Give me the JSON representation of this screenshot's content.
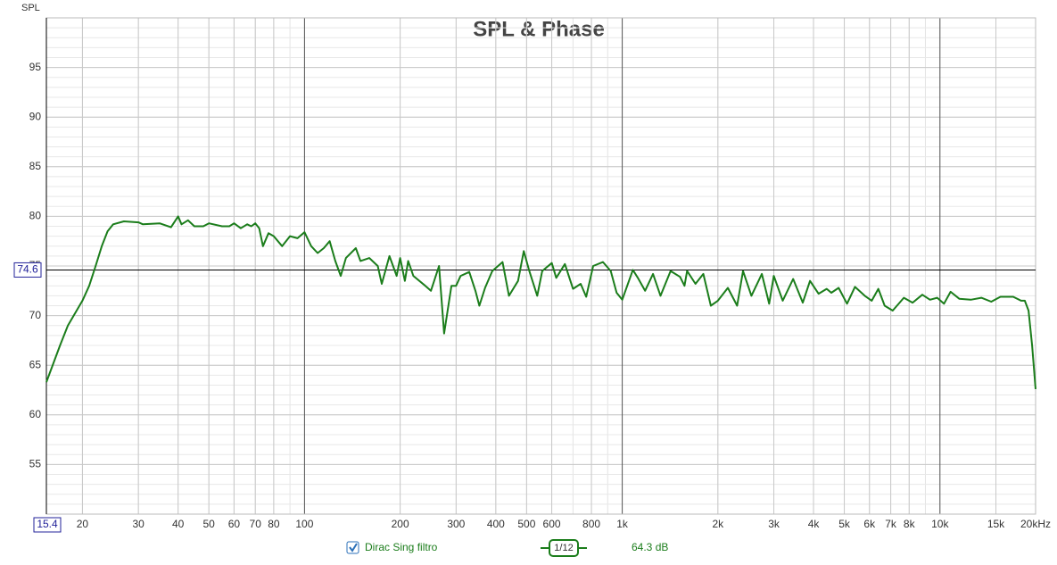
{
  "chart_data": {
    "type": "line",
    "title": "SPL & Phase",
    "y_label": "SPL",
    "x": [
      15.4,
      17,
      18,
      20,
      21,
      22,
      23,
      24,
      25,
      27,
      30,
      31,
      35,
      38,
      40,
      41,
      43,
      45,
      48,
      50,
      55,
      58,
      60,
      63,
      66,
      68,
      70,
      72,
      74,
      77,
      80,
      85,
      90,
      95,
      100,
      105,
      110,
      115,
      120,
      125,
      130,
      135,
      145,
      150,
      160,
      170,
      175,
      185,
      195,
      200,
      207,
      212,
      220,
      240,
      250,
      265,
      275,
      290,
      300,
      310,
      330,
      345,
      355,
      370,
      390,
      420,
      440,
      470,
      490,
      510,
      540,
      560,
      600,
      620,
      660,
      700,
      740,
      770,
      810,
      870,
      920,
      960,
      1000,
      1080,
      1120,
      1180,
      1250,
      1320,
      1420,
      1520,
      1570,
      1600,
      1700,
      1800,
      1900,
      2000,
      2150,
      2300,
      2400,
      2550,
      2750,
      2900,
      3000,
      3200,
      3450,
      3700,
      3900,
      4150,
      4400,
      4550,
      4800,
      5100,
      5400,
      5800,
      6100,
      6400,
      6700,
      7100,
      7700,
      8200,
      8800,
      9300,
      9800,
      10300,
      10800,
      11500,
      12500,
      13500,
      14500,
      15500,
      17000,
      18000,
      18500,
      19000,
      19500,
      20000
    ],
    "series": [
      {
        "name": "Dirac Sing filtro",
        "color": "#1b7d1b",
        "values": [
          63.3,
          67,
          69,
          71.5,
          73,
          75,
          77,
          78.5,
          79.2,
          79.5,
          79.4,
          79.2,
          79.3,
          78.9,
          80.0,
          79.2,
          79.6,
          79.0,
          79.0,
          79.3,
          79.0,
          79.0,
          79.3,
          78.8,
          79.2,
          79.0,
          79.3,
          78.8,
          77.0,
          78.3,
          78.0,
          77.0,
          78.0,
          77.8,
          78.4,
          77.0,
          76.3,
          76.8,
          77.5,
          75.5,
          74.0,
          75.8,
          76.8,
          75.5,
          75.8,
          75.0,
          73.2,
          76.0,
          74.0,
          75.8,
          73.5,
          75.5,
          74.0,
          73.0,
          72.5,
          75.0,
          68.2,
          73.0,
          73.0,
          74.0,
          74.4,
          72.5,
          71.0,
          72.8,
          74.5,
          75.4,
          72.0,
          73.5,
          76.5,
          74.5,
          72.0,
          74.5,
          75.3,
          73.8,
          75.2,
          72.7,
          73.2,
          71.9,
          75.0,
          75.4,
          74.5,
          72.3,
          71.6,
          74.6,
          73.8,
          72.5,
          74.2,
          72.0,
          74.5,
          73.9,
          73.0,
          74.5,
          73.2,
          74.2,
          71.0,
          71.5,
          72.8,
          71.0,
          74.5,
          72.0,
          74.2,
          71.2,
          74.0,
          71.5,
          73.7,
          71.3,
          73.5,
          72.2,
          72.7,
          72.3,
          72.8,
          71.2,
          72.9,
          72.0,
          71.5,
          72.7,
          71.0,
          70.5,
          71.8,
          71.3,
          72.1,
          71.6,
          71.8,
          71.2,
          72.4,
          71.7,
          71.6,
          71.8,
          71.4,
          71.9,
          71.9,
          71.5,
          71.5,
          70.5,
          67.0,
          62.6
        ]
      }
    ],
    "xlim": [
      15.4,
      20000
    ],
    "log_x": true,
    "xticks": [
      20,
      30,
      40,
      50,
      60,
      70,
      80,
      100,
      200,
      300,
      400,
      500,
      600,
      800,
      {
        "value": 1000,
        "label": "1k"
      },
      {
        "value": 2000,
        "label": "2k"
      },
      {
        "value": 3000,
        "label": "3k"
      },
      {
        "value": 4000,
        "label": "4k"
      },
      {
        "value": 5000,
        "label": "5k"
      },
      {
        "value": 6000,
        "label": "6k"
      },
      {
        "value": 7000,
        "label": "7k"
      },
      {
        "value": 8000,
        "label": "8k"
      },
      {
        "value": 10000,
        "label": "10k"
      },
      {
        "value": 15000,
        "label": "15k"
      },
      {
        "value": 20000,
        "label": "20kHz"
      }
    ],
    "ylim": [
      50,
      100
    ],
    "yticks": [
      55,
      60,
      65,
      70,
      75,
      80,
      85,
      90,
      95
    ],
    "grid": true,
    "minor_grid": true,
    "cursor": {
      "x": 15.4,
      "y": 74.6
    },
    "smoothing": "1/12",
    "level": "64.3 dB"
  }
}
